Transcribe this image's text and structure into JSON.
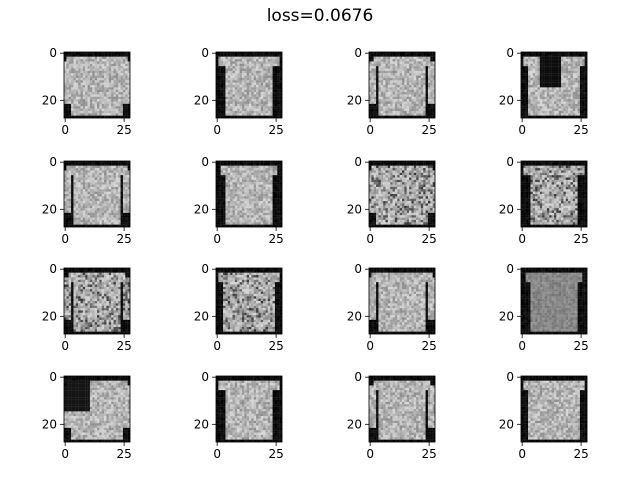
{
  "window": {
    "title": "loss=0.0676"
  },
  "chart_data": {
    "type": "image_grid",
    "title": "loss=0.0676",
    "loss": 0.0676,
    "grid": {
      "rows": 4,
      "cols": 4
    },
    "image_size": [
      28,
      28
    ],
    "colormap": "gray",
    "axes": {
      "x_ticks": [
        "0",
        "25"
      ],
      "y_ticks": [
        "0",
        "20"
      ],
      "x_tick_values": [
        0,
        25
      ],
      "y_tick_values": [
        0,
        20
      ],
      "xlim": [
        -0.5,
        27.5
      ],
      "ylim": [
        27.5,
        -0.5
      ]
    },
    "panels": [
      {
        "index": 1,
        "row": 1,
        "col": 1,
        "subject": "generated clothing item (shirt)"
      },
      {
        "index": 2,
        "row": 1,
        "col": 2,
        "subject": "generated clothing item (shirt)"
      },
      {
        "index": 3,
        "row": 1,
        "col": 3,
        "subject": "generated clothing item (coat)"
      },
      {
        "index": 4,
        "row": 1,
        "col": 4,
        "subject": "generated clothing item (coat)"
      },
      {
        "index": 5,
        "row": 2,
        "col": 1,
        "subject": "generated clothing item (pullover)"
      },
      {
        "index": 6,
        "row": 2,
        "col": 2,
        "subject": "generated clothing item (shirt)"
      },
      {
        "index": 7,
        "row": 2,
        "col": 3,
        "subject": "generated clothing item (shirt)"
      },
      {
        "index": 8,
        "row": 2,
        "col": 4,
        "subject": "generated clothing item (shirt)"
      },
      {
        "index": 9,
        "row": 3,
        "col": 1,
        "subject": "generated clothing item (shirt)"
      },
      {
        "index": 10,
        "row": 3,
        "col": 2,
        "subject": "generated clothing item (shirt)"
      },
      {
        "index": 11,
        "row": 3,
        "col": 3,
        "subject": "generated clothing item (top)"
      },
      {
        "index": 12,
        "row": 3,
        "col": 4,
        "subject": "generated clothing item (top)"
      },
      {
        "index": 13,
        "row": 4,
        "col": 1,
        "subject": "generated clothing item (shirt)"
      },
      {
        "index": 14,
        "row": 4,
        "col": 2,
        "subject": "generated clothing item (t-shirt)"
      },
      {
        "index": 15,
        "row": 4,
        "col": 3,
        "subject": "generated clothing item (coat)"
      },
      {
        "index": 16,
        "row": 4,
        "col": 4,
        "subject": "generated clothing item (shirt)"
      }
    ]
  }
}
